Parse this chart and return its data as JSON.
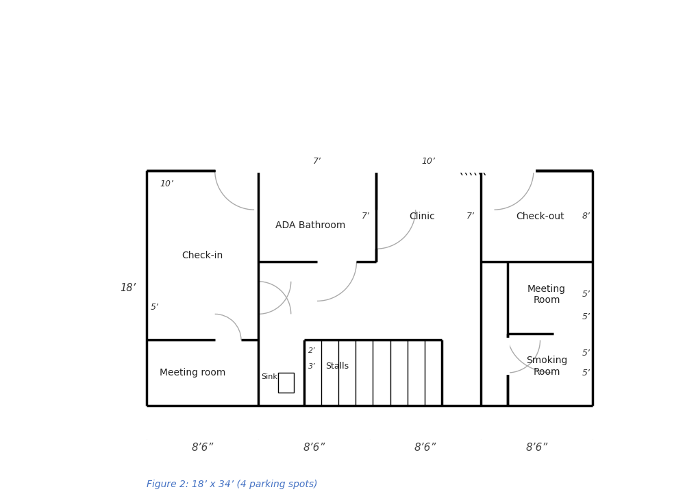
{
  "fig_width": 10.0,
  "fig_height": 7.21,
  "bg_color": "#ffffff",
  "line_color": "#000000",
  "line_width": 2.5,
  "thin_lw": 1.0,
  "door_color": "#aaaaaa",
  "caption": "Figure 2: 18’ x 34’ (4 parking spots)",
  "caption_color": "#4472c4",
  "parking_labels": [
    "8’6”",
    "8’6”",
    "8’6”",
    "8’6”"
  ],
  "dim_18": "18’",
  "dim_10_checkin": "10’",
  "dim_5_meetinglow": "5’",
  "dim_7_ada_top": "7’",
  "dim_10_clinic_top": "10’",
  "dim_7_ada_int": "7’",
  "dim_7_clinic_int": "7’",
  "dim_8_checkout": "8’",
  "dim_5_mrw": "5’",
  "dim_5_mrh": "5’",
  "dim_5_smkw": "5’",
  "dim_5_smkh": "5’",
  "dim_2_stall": "2’",
  "dim_3_stall": "3’",
  "label_checkin": "Check-in",
  "label_ada": "ADA Bathroom",
  "label_clinic": "Clinic",
  "label_checkout": "Check-out",
  "label_meeting_room": "Meeting\nRoom",
  "label_meeting_low": "Meeting room",
  "label_sink": "Sink",
  "label_stalls": "Stalls",
  "label_smoking": "Smoking\nRoom"
}
